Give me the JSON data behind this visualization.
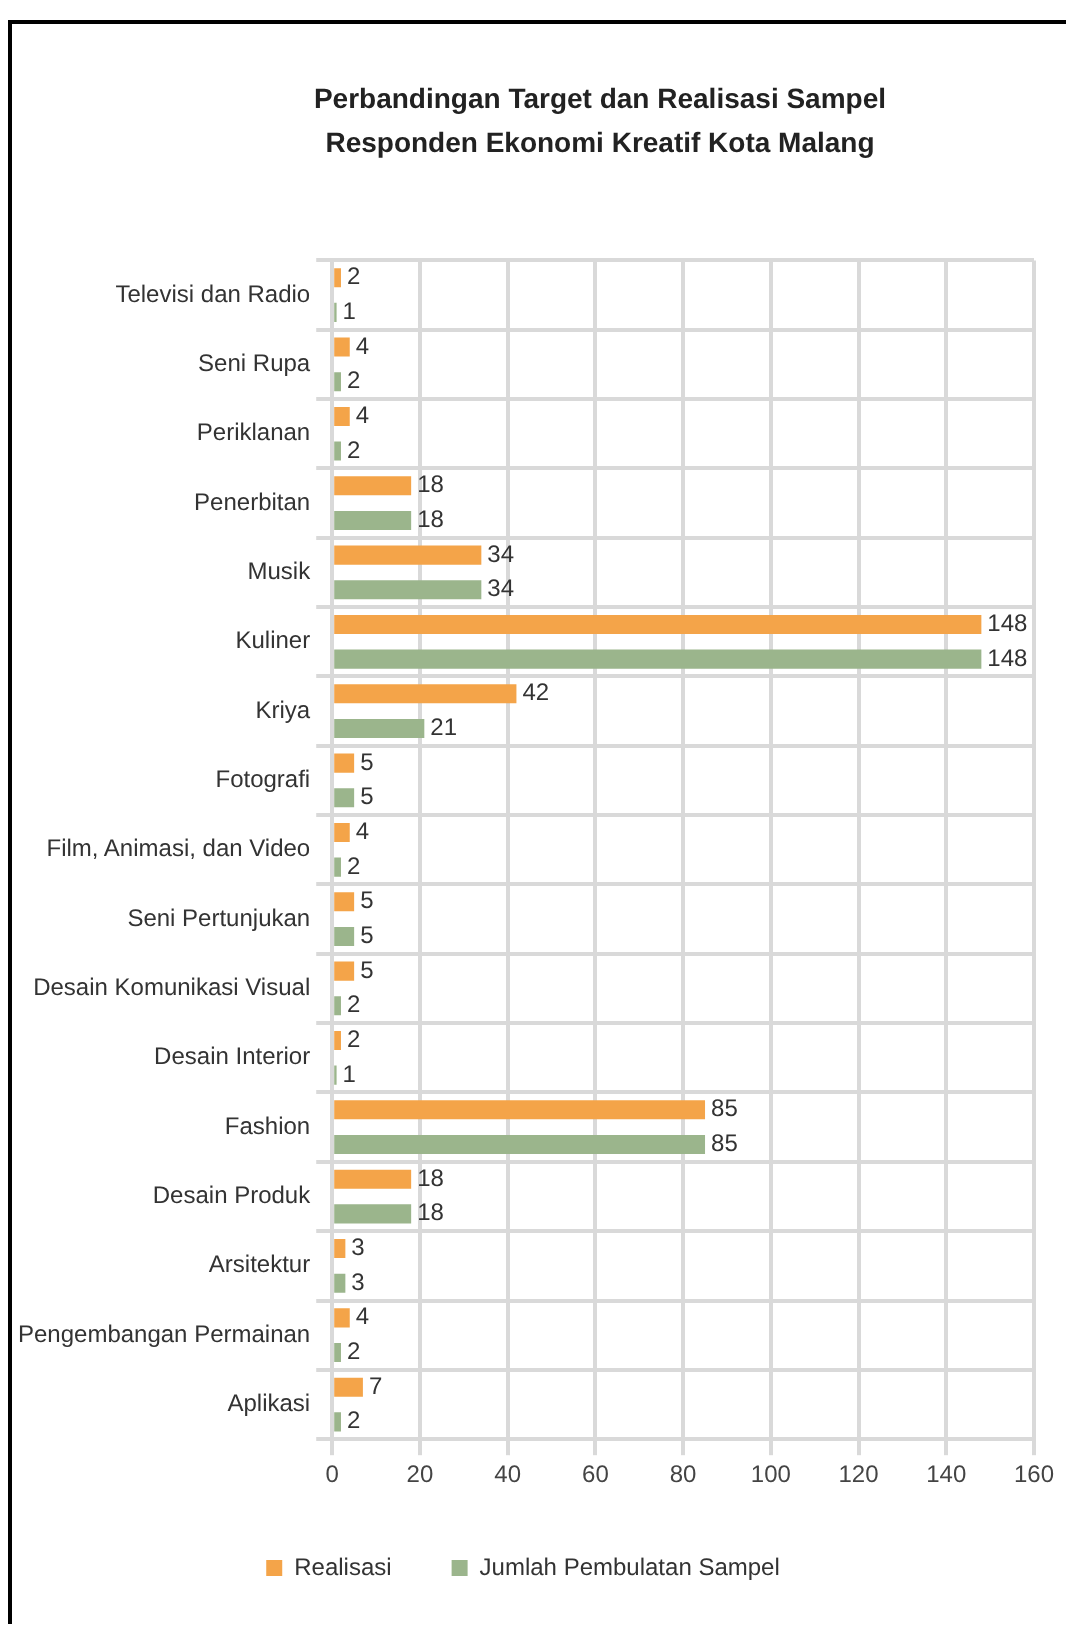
{
  "chart_data": {
    "type": "bar",
    "orientation": "horizontal",
    "title": "Perbandingan Target dan Realisasi Sampel Responden Ekonomi Kreatif Kota Malang",
    "categories": [
      "Televisi dan Radio",
      "Seni Rupa",
      "Periklanan",
      "Penerbitan",
      "Musik",
      "Kuliner",
      "Kriya",
      "Fotografi",
      "Film, Animasi, dan Video",
      "Seni Pertunjukan",
      "Desain Komunikasi Visual",
      "Desain Interior",
      "Fashion",
      "Desain Produk",
      "Arsitektur",
      "Pengembangan Permainan",
      "Aplikasi"
    ],
    "series": [
      {
        "name": "Realisasi",
        "color": "#f4a449",
        "values": [
          2,
          4,
          4,
          18,
          34,
          148,
          42,
          5,
          4,
          5,
          5,
          2,
          85,
          18,
          3,
          4,
          7
        ]
      },
      {
        "name": "Jumlah Pembulatan Sampel",
        "color": "#9bb58c",
        "values": [
          1,
          2,
          2,
          18,
          34,
          148,
          21,
          5,
          2,
          5,
          2,
          1,
          85,
          18,
          3,
          2,
          2
        ]
      }
    ],
    "xlim": [
      0,
      160
    ],
    "xticks": [
      0,
      20,
      40,
      60,
      80,
      100,
      120,
      140,
      160
    ],
    "grid": true,
    "legend": "bottom",
    "data_labels": true
  }
}
